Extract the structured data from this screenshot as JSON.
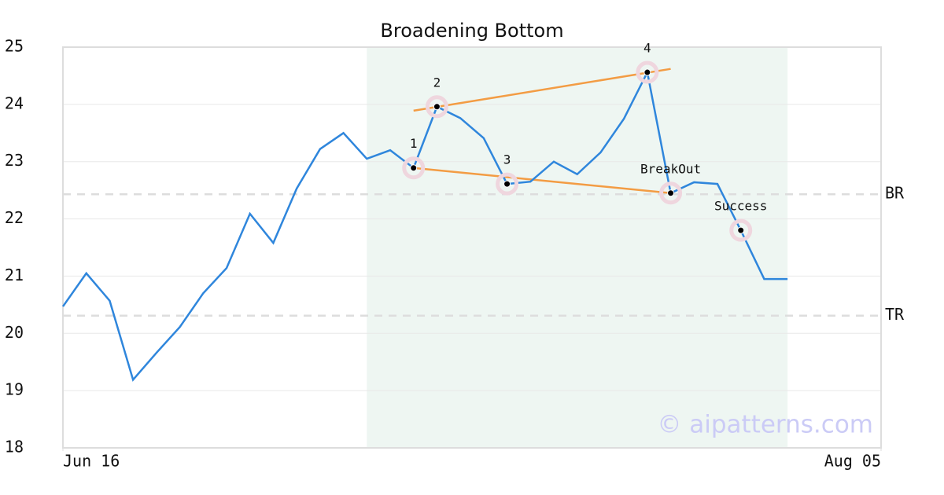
{
  "chart_data": {
    "type": "line",
    "title": "Broadening Bottom",
    "x": [
      0,
      1,
      2,
      3,
      4,
      5,
      6,
      7,
      8,
      9,
      10,
      11,
      12,
      13,
      14,
      15,
      16,
      17,
      18,
      19,
      20,
      21,
      22,
      23,
      24,
      25,
      26,
      27,
      28,
      29,
      30,
      31
    ],
    "series": [
      {
        "color": "#2f86dc",
        "values": [
          20.47,
          21.05,
          20.57,
          19.19,
          19.66,
          20.11,
          20.7,
          21.14,
          22.09,
          21.58,
          22.53,
          23.22,
          23.5,
          23.05,
          23.2,
          22.89,
          23.96,
          23.76,
          23.41,
          22.61,
          22.65,
          23.0,
          22.78,
          23.16,
          23.75,
          24.56,
          22.45,
          22.64,
          22.61,
          21.8,
          20.95,
          20.95
        ]
      }
    ],
    "xlim": [
      0,
      35
    ],
    "xticks": [
      {
        "value": 0,
        "label": "Jun 16"
      },
      {
        "value": 35,
        "label": "Aug 05"
      }
    ],
    "ylim": [
      18,
      25
    ],
    "yticks": [
      18,
      19,
      20,
      21,
      22,
      23,
      24,
      25
    ],
    "grid": true,
    "shade": {
      "x": [
        13,
        31
      ],
      "color": "#eef6f2"
    },
    "trendlines": [
      {
        "color": "#f39c44",
        "x": [
          15,
          26
        ],
        "y": [
          23.89,
          24.62
        ]
      },
      {
        "color": "#f39c44",
        "x": [
          15,
          26
        ],
        "y": [
          22.89,
          22.45
        ]
      }
    ],
    "hlines": [
      {
        "label": "BR",
        "value": 22.43
      },
      {
        "label": "TR",
        "value": 20.31
      }
    ],
    "annotations": [
      {
        "label": "1",
        "x": 15,
        "y": 22.89
      },
      {
        "label": "2",
        "x": 16,
        "y": 23.96
      },
      {
        "label": "3",
        "x": 19,
        "y": 22.61
      },
      {
        "label": "4",
        "x": 25,
        "y": 24.56
      },
      {
        "label": "BreakOut",
        "x": 26,
        "y": 22.45
      },
      {
        "label": "Success",
        "x": 29,
        "y": 21.8
      }
    ],
    "watermark": "© aipatterns.com"
  }
}
